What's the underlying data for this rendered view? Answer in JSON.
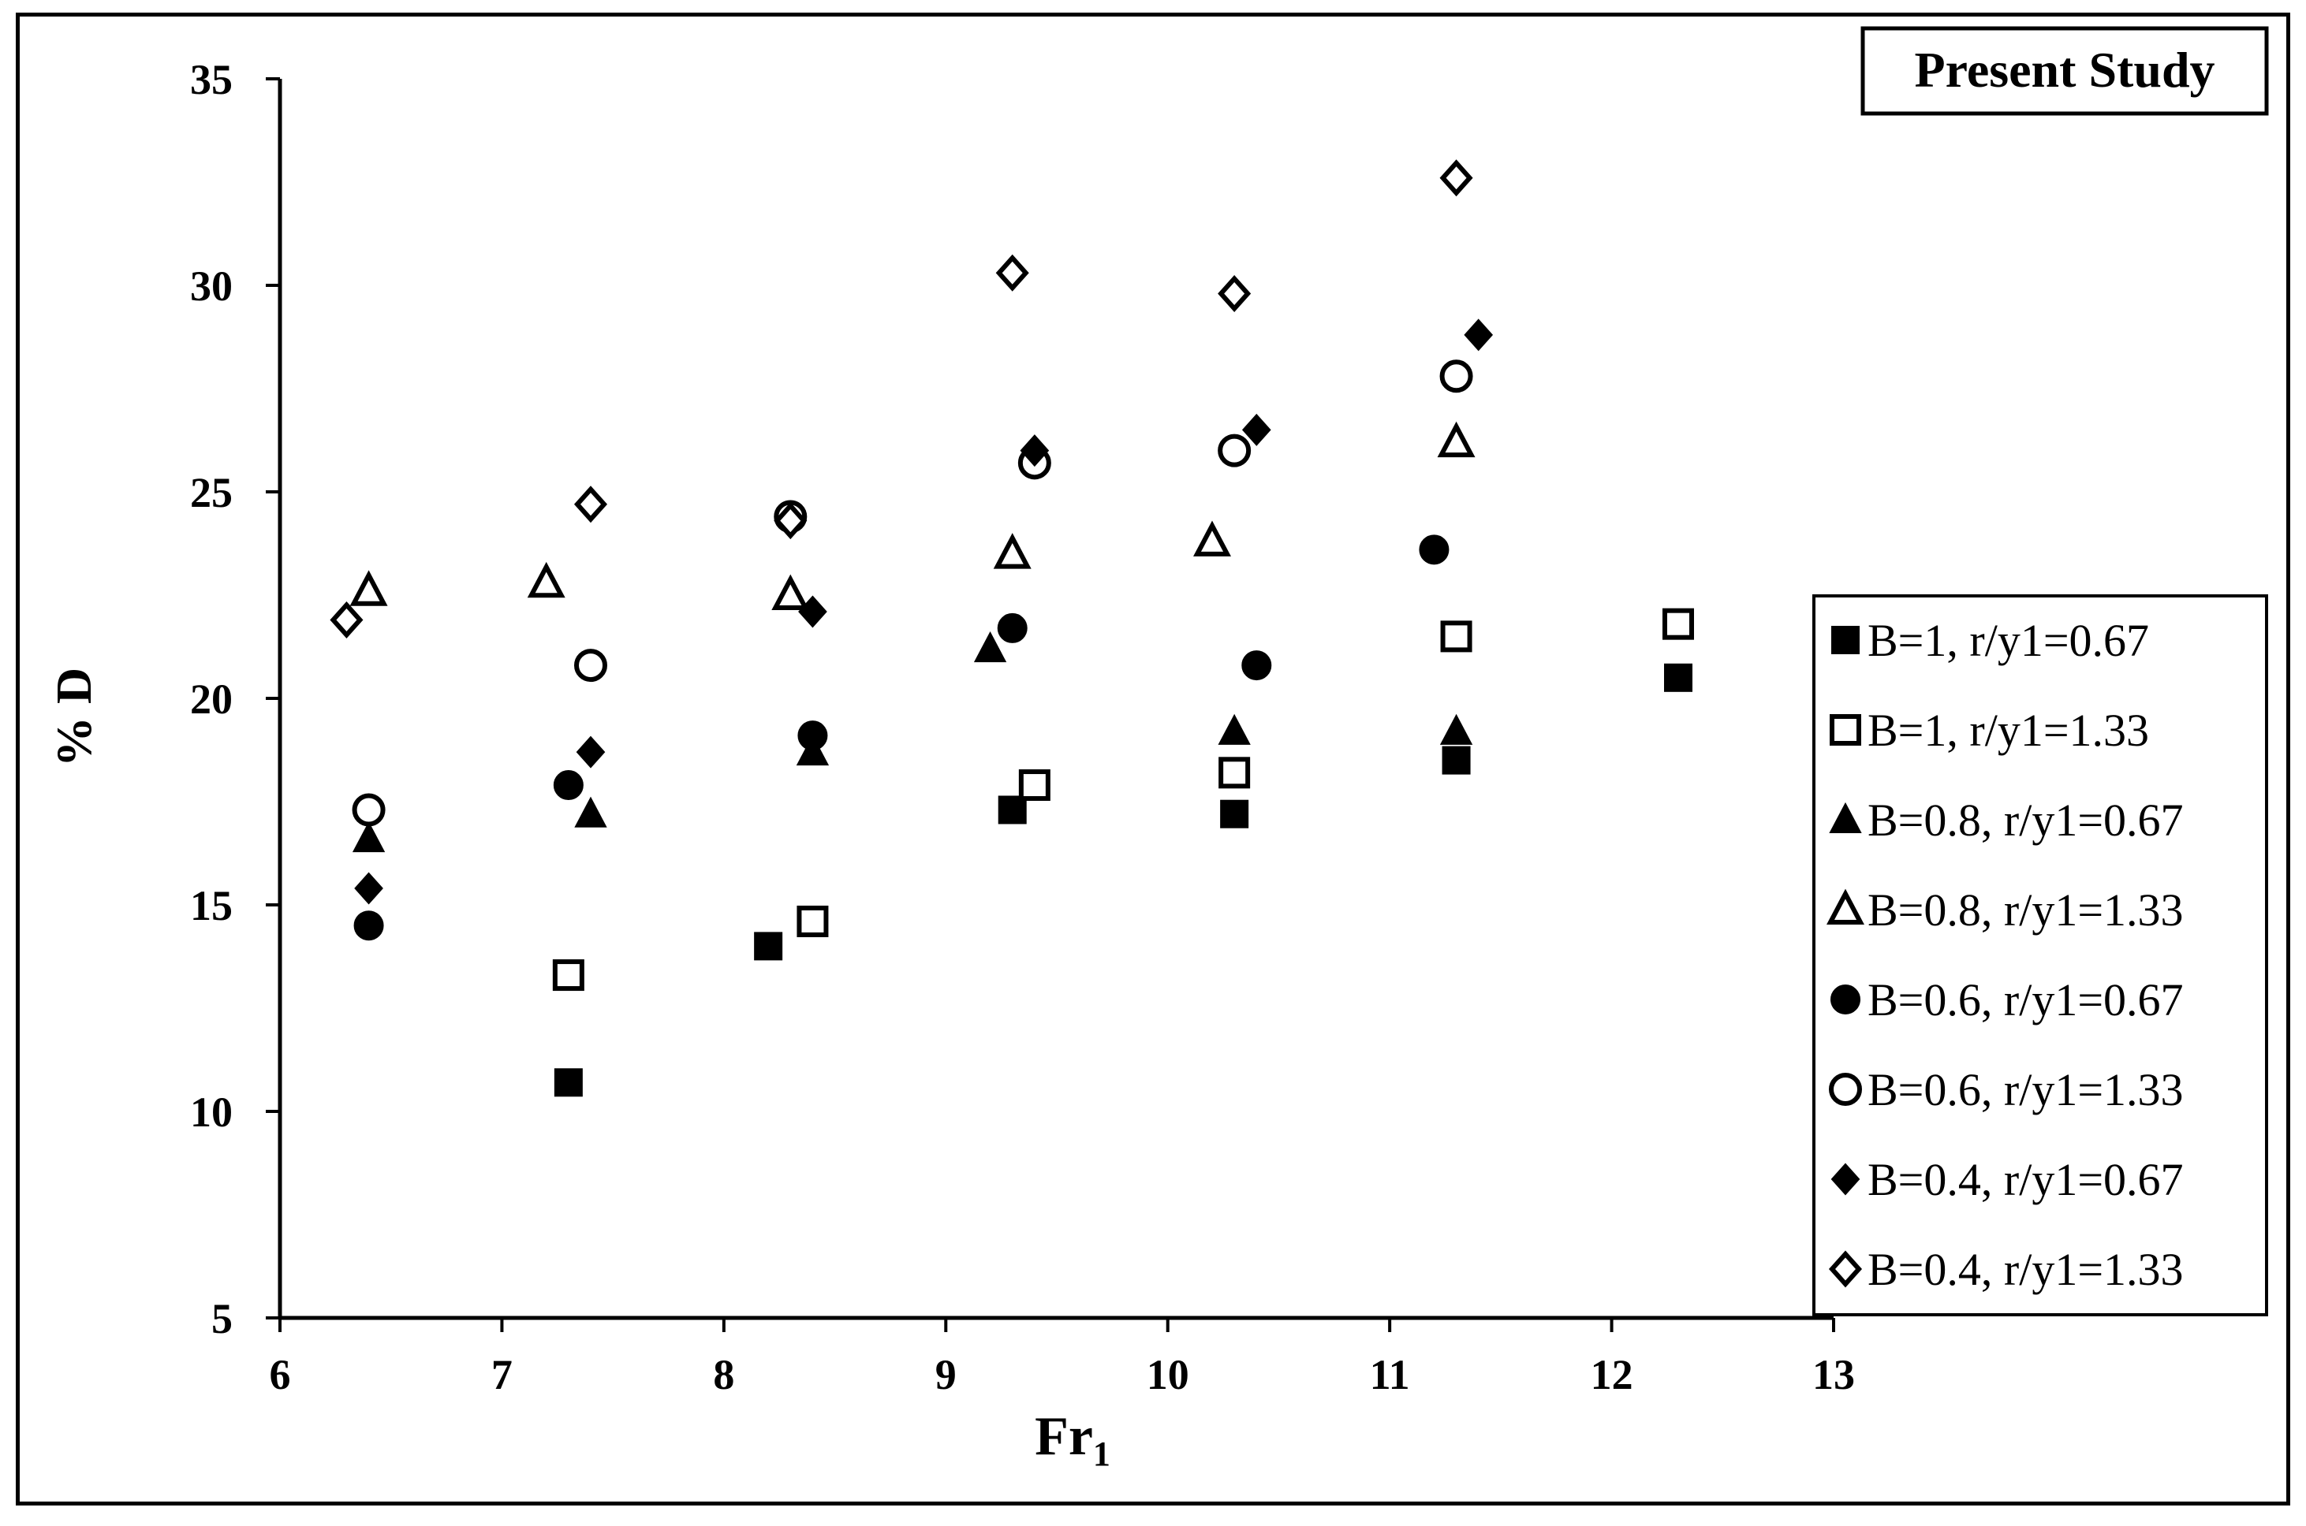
{
  "chart_data": {
    "type": "scatter",
    "title": "Present Study",
    "xlabel": "Fr",
    "xlabel_sub": "1",
    "ylabel": "% D",
    "xlim": [
      6,
      13
    ],
    "ylim": [
      5,
      35
    ],
    "xticks": [
      6,
      7,
      8,
      9,
      10,
      11,
      12,
      13
    ],
    "yticks": [
      5,
      10,
      15,
      20,
      25,
      30,
      35
    ],
    "grid": false,
    "legend_position": "right",
    "series": [
      {
        "name": "B=1, r/y1=0.67",
        "marker": "square",
        "filled": true,
        "points": [
          [
            7.3,
            10.7
          ],
          [
            8.2,
            14.0
          ],
          [
            9.3,
            17.3
          ],
          [
            10.3,
            17.2
          ],
          [
            11.3,
            18.5
          ],
          [
            12.3,
            20.5
          ]
        ]
      },
      {
        "name": "B=1, r/y1=1.33",
        "marker": "square",
        "filled": false,
        "points": [
          [
            7.3,
            13.3
          ],
          [
            8.4,
            14.6
          ],
          [
            9.4,
            17.9
          ],
          [
            10.3,
            18.2
          ],
          [
            11.3,
            21.5
          ],
          [
            12.3,
            21.8
          ]
        ]
      },
      {
        "name": "B=0.8, r/y1=0.67",
        "marker": "triangle",
        "filled": true,
        "points": [
          [
            6.4,
            16.6
          ],
          [
            7.4,
            17.2
          ],
          [
            8.4,
            18.7
          ],
          [
            9.2,
            21.2
          ],
          [
            10.3,
            19.2
          ],
          [
            11.3,
            19.2
          ]
        ]
      },
      {
        "name": "B=0.8, r/y1=1.33",
        "marker": "triangle",
        "filled": false,
        "points": [
          [
            6.4,
            22.6
          ],
          [
            7.2,
            22.8
          ],
          [
            8.3,
            22.5
          ],
          [
            9.3,
            23.5
          ],
          [
            10.2,
            23.8
          ],
          [
            11.3,
            26.2
          ]
        ]
      },
      {
        "name": "B=0.6, r/y1=0.67",
        "marker": "circle",
        "filled": true,
        "points": [
          [
            6.4,
            14.5
          ],
          [
            7.3,
            17.9
          ],
          [
            8.4,
            19.1
          ],
          [
            9.3,
            21.7
          ],
          [
            10.4,
            20.8
          ],
          [
            11.2,
            23.6
          ]
        ]
      },
      {
        "name": "B=0.6, r/y1=1.33",
        "marker": "circle",
        "filled": false,
        "points": [
          [
            6.4,
            17.3
          ],
          [
            7.4,
            20.8
          ],
          [
            8.3,
            24.4
          ],
          [
            9.4,
            25.7
          ],
          [
            10.3,
            26.0
          ],
          [
            11.3,
            27.8
          ]
        ]
      },
      {
        "name": "B=0.4, r/y1=0.67",
        "marker": "diamond",
        "filled": true,
        "points": [
          [
            6.4,
            15.4
          ],
          [
            7.4,
            18.7
          ],
          [
            8.4,
            22.1
          ],
          [
            9.4,
            26.0
          ],
          [
            10.4,
            26.5
          ],
          [
            11.4,
            28.8
          ]
        ]
      },
      {
        "name": "B=0.4, r/y1=1.33",
        "marker": "diamond",
        "filled": false,
        "points": [
          [
            6.3,
            21.9
          ],
          [
            7.4,
            24.7
          ],
          [
            8.3,
            24.3
          ],
          [
            9.3,
            30.3
          ],
          [
            10.3,
            29.8
          ],
          [
            11.3,
            32.6
          ]
        ]
      }
    ]
  }
}
